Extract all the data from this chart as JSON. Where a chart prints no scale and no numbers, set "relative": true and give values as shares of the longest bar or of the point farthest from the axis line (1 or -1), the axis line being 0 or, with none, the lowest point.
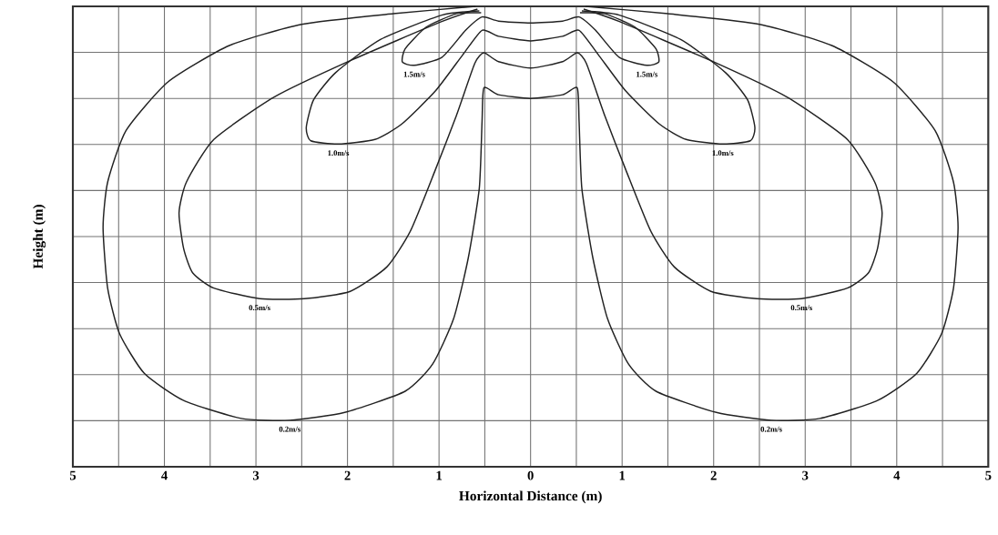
{
  "chart_data": {
    "type": "line",
    "relative": true,
    "xlabel": "Horizontal Distance (m)",
    "ylabel": "Height (m)",
    "xlim": [
      -5,
      5
    ],
    "xticks": [
      {
        "value": -5,
        "label": "5"
      },
      {
        "value": -4.5,
        "label": null
      },
      {
        "value": -4,
        "label": "4"
      },
      {
        "value": -3.5,
        "label": null
      },
      {
        "value": -3,
        "label": "3"
      },
      {
        "value": -2.5,
        "label": null
      },
      {
        "value": -2,
        "label": "2"
      },
      {
        "value": -1.5,
        "label": null
      },
      {
        "value": -1,
        "label": "1"
      },
      {
        "value": -0.5,
        "label": null
      },
      0,
      {
        "value": 0.5,
        "label": null
      },
      1,
      {
        "value": 1.5,
        "label": null
      },
      2,
      {
        "value": 2.5,
        "label": null
      },
      3,
      {
        "value": 3.5,
        "label": null
      },
      4,
      {
        "value": 4.5,
        "label": null
      },
      5
    ],
    "grid": true,
    "series": [
      {
        "color": "#222222",
        "x": [
          -0.6,
          -1.5,
          -2.5,
          -3.29,
          -3.96,
          -4.42,
          -4.62,
          -4.67,
          -4.62,
          -4.49,
          -4.22,
          -3.79,
          -3.16,
          -2.63,
          -2.03,
          -1.37,
          -1.07,
          -0.84,
          -0.68,
          -0.56,
          -0.53,
          -0.51,
          -0.35,
          0,
          0.35,
          0.51,
          0.53,
          0.56,
          0.68,
          0.84,
          1.07,
          1.37,
          2.03,
          2.63,
          3.16,
          3.79,
          4.22,
          4.49,
          4.62,
          4.67,
          4.62,
          4.42,
          3.96,
          3.29,
          2.5,
          1.5,
          0.6
        ],
        "values": [
          1.0,
          0.984,
          0.961,
          0.915,
          0.836,
          0.73,
          0.618,
          0.52,
          0.388,
          0.289,
          0.203,
          0.144,
          0.105,
          0.101,
          0.118,
          0.164,
          0.223,
          0.322,
          0.454,
          0.605,
          0.75,
          0.823,
          0.808,
          0.8,
          0.808,
          0.823,
          0.75,
          0.605,
          0.454,
          0.322,
          0.223,
          0.164,
          0.118,
          0.101,
          0.105,
          0.144,
          0.203,
          0.289,
          0.388,
          0.52,
          0.618,
          0.73,
          0.836,
          0.915,
          0.961,
          0.984,
          1.0
        ]
      },
      {
        "color": "#222222",
        "x": [
          -0.58,
          -0.97,
          -1.97,
          -2.8,
          -3.46,
          -3.76,
          -3.84,
          -3.79,
          -3.69,
          -3.46,
          -2.96,
          -2.47,
          -1.97,
          -1.57,
          -1.31,
          -1.04,
          -0.81,
          -0.61,
          -0.51,
          -0.35,
          0,
          0.35,
          0.51,
          0.61,
          0.81,
          1.04,
          1.31,
          1.57,
          1.97,
          2.47,
          2.96,
          3.46,
          3.69,
          3.79,
          3.84,
          3.76,
          3.46,
          2.8,
          1.97,
          0.97,
          0.58
        ],
        "values": [
          0.994,
          0.967,
          0.882,
          0.803,
          0.711,
          0.618,
          0.552,
          0.474,
          0.421,
          0.388,
          0.365,
          0.365,
          0.381,
          0.434,
          0.513,
          0.645,
          0.763,
          0.876,
          0.899,
          0.88,
          0.866,
          0.88,
          0.899,
          0.876,
          0.763,
          0.645,
          0.513,
          0.434,
          0.381,
          0.365,
          0.365,
          0.388,
          0.421,
          0.474,
          0.552,
          0.618,
          0.711,
          0.803,
          0.882,
          0.967,
          0.994
        ]
      },
      {
        "color": "#222222",
        "x": [
          -0.56,
          -0.97,
          -1.64,
          -2.13,
          -2.37,
          -2.45,
          -2.4,
          -2.1,
          -1.7,
          -1.41,
          -1.04,
          -0.74,
          -0.53,
          -0.35,
          0,
          0.35,
          0.53,
          0.74,
          1.04,
          1.41,
          1.7,
          2.1,
          2.4,
          2.45,
          2.37,
          2.13,
          1.64,
          0.97,
          0.56
        ],
        "values": [
          0.99,
          0.981,
          0.928,
          0.856,
          0.797,
          0.737,
          0.708,
          0.701,
          0.711,
          0.744,
          0.816,
          0.895,
          0.948,
          0.935,
          0.925,
          0.935,
          0.948,
          0.895,
          0.816,
          0.744,
          0.711,
          0.701,
          0.708,
          0.737,
          0.797,
          0.856,
          0.928,
          0.981,
          0.99
        ]
      },
      {
        "color": "#222222",
        "x": [
          -0.54,
          -0.81,
          -1.14,
          -1.37,
          -1.4,
          -1.27,
          -0.97,
          -0.71,
          -0.53,
          -0.35,
          0,
          0.35,
          0.53,
          0.71,
          0.97,
          1.27,
          1.4,
          1.37,
          1.14,
          0.81,
          0.54
        ],
        "values": [
          0.986,
          0.984,
          0.955,
          0.908,
          0.879,
          0.872,
          0.889,
          0.948,
          0.977,
          0.968,
          0.964,
          0.968,
          0.977,
          0.948,
          0.889,
          0.872,
          0.879,
          0.908,
          0.955,
          0.984,
          0.986
        ]
      }
    ],
    "annotations": [
      {
        "text": "1.5m/s",
        "x": -1.27,
        "y": 0.872
      },
      {
        "text": "1.5m/s",
        "x": 1.27,
        "y": 0.872
      },
      {
        "text": "1.0m/s",
        "x": -2.1,
        "y": 0.701
      },
      {
        "text": "1.0m/s",
        "x": 2.1,
        "y": 0.701
      },
      {
        "text": "0.5m/s",
        "x": -2.96,
        "y": 0.365
      },
      {
        "text": "0.5m/s",
        "x": 2.96,
        "y": 0.365
      },
      {
        "text": "0.2m/s",
        "x": -2.63,
        "y": 0.101
      },
      {
        "text": "0.2m/s",
        "x": 2.63,
        "y": 0.101
      }
    ]
  }
}
